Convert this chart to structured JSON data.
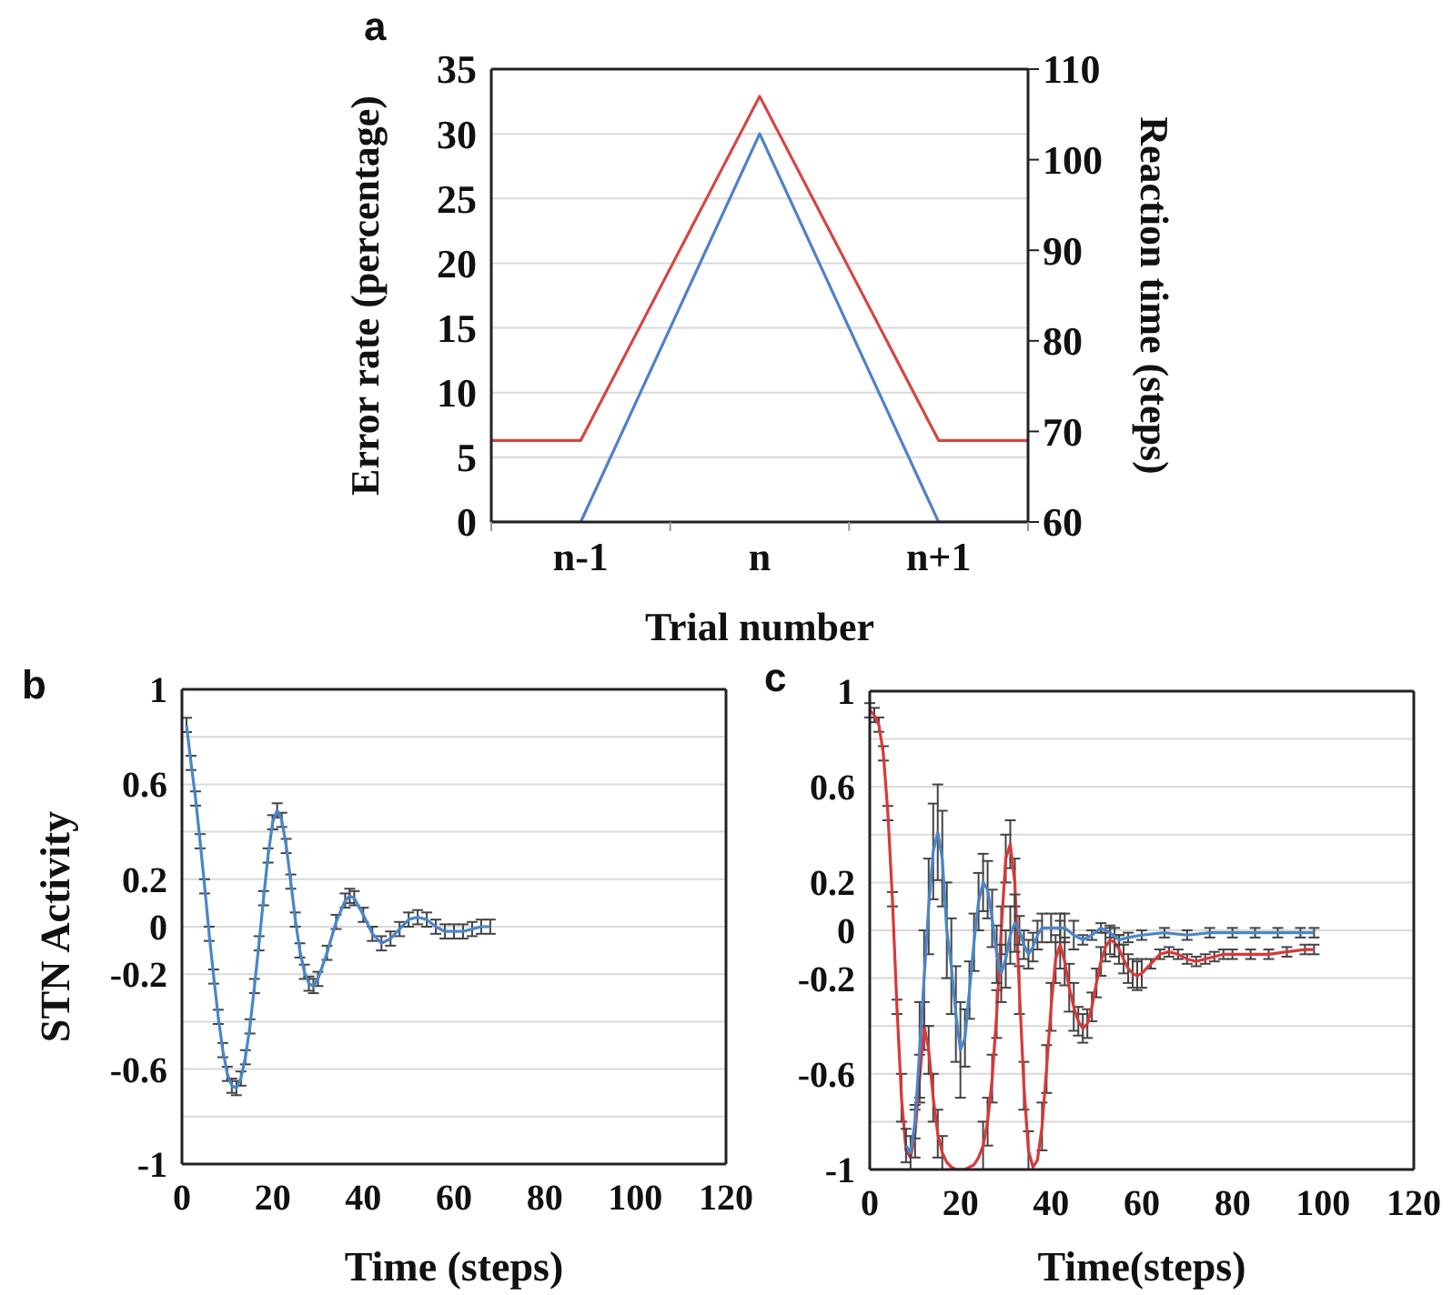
{
  "chart_data": [
    {
      "type": "line",
      "title": "a",
      "xlabel": "Trial number",
      "ylabel": "Error rate (percentage)",
      "y2label": "Reaction time (steps)",
      "categories": [
        null,
        "n-1",
        null,
        "n",
        null,
        "n+1",
        null
      ],
      "ylim": [
        0,
        35
      ],
      "yticks": [
        0,
        5,
        10,
        15,
        20,
        25,
        30,
        35
      ],
      "y2lim": [
        60,
        110
      ],
      "y2ticks": [
        60,
        70,
        80,
        90,
        100,
        110
      ],
      "grid": "y",
      "series": [
        {
          "color": "#d64541",
          "axis": "y2",
          "values": [
            69,
            69,
            88,
            107,
            88,
            69,
            69
          ]
        },
        {
          "color": "#4f81c7",
          "values": [
            0,
            0,
            15,
            30,
            15,
            0,
            0
          ]
        }
      ]
    },
    {
      "type": "line",
      "title": "b",
      "xlabel": "Time (steps)",
      "ylabel": "STN Activity",
      "xlim": [
        0,
        120
      ],
      "xticks": [
        0,
        20,
        40,
        60,
        80,
        100,
        120
      ],
      "ylim": [
        -1,
        1
      ],
      "yticks": [
        1,
        {
          "value": 0.8,
          "label": null
        },
        0.6,
        {
          "value": 0.4,
          "label": null
        },
        0.2,
        0,
        -0.2,
        {
          "value": -0.4,
          "label": null
        },
        -0.6,
        {
          "value": -0.8,
          "label": null
        },
        -1
      ],
      "grid": "y",
      "series": [
        {
          "color": "#4a86c8",
          "x": [
            1,
            2,
            3,
            4,
            5,
            6,
            7,
            8,
            9,
            10,
            11,
            12,
            13,
            14,
            15,
            16,
            17,
            18,
            19,
            20,
            21,
            22,
            23,
            24,
            25,
            26,
            27,
            28,
            29,
            30,
            32,
            34,
            36,
            37,
            38,
            40,
            42,
            44,
            46,
            48,
            50,
            52,
            54,
            56,
            58,
            60,
            62,
            64,
            66,
            68
          ],
          "values": [
            0.85,
            0.69,
            0.54,
            0.36,
            0.17,
            -0.03,
            -0.21,
            -0.38,
            -0.52,
            -0.62,
            -0.67,
            -0.68,
            -0.64,
            -0.55,
            -0.42,
            -0.25,
            -0.07,
            0.12,
            0.3,
            0.44,
            0.49,
            0.45,
            0.34,
            0.19,
            0.03,
            -0.1,
            -0.19,
            -0.24,
            -0.25,
            -0.22,
            -0.11,
            0.02,
            0.11,
            0.13,
            0.12,
            0.05,
            -0.03,
            -0.07,
            -0.05,
            -0.01,
            0.03,
            0.04,
            0.03,
            0.0,
            -0.02,
            -0.02,
            -0.02,
            -0.01,
            0.0,
            0.0
          ],
          "errors": [
            0.03,
            0.03,
            0.03,
            0.03,
            0.03,
            0.03,
            0.03,
            0.03,
            0.03,
            0.03,
            0.03,
            0.03,
            0.03,
            0.03,
            0.03,
            0.03,
            0.03,
            0.03,
            0.03,
            0.03,
            0.03,
            0.03,
            0.03,
            0.03,
            0.03,
            0.03,
            0.03,
            0.03,
            0.03,
            0.03,
            0.03,
            0.03,
            0.03,
            0.03,
            0.03,
            0.03,
            0.03,
            0.03,
            0.03,
            0.03,
            0.03,
            0.03,
            0.03,
            0.03,
            0.03,
            0.03,
            0.03,
            0.03,
            0.03,
            0.03
          ]
        }
      ]
    },
    {
      "type": "line",
      "title": "c",
      "xlabel": "Time(steps)",
      "xlim": [
        0,
        120
      ],
      "xticks": [
        0,
        20,
        40,
        60,
        80,
        100,
        120
      ],
      "ylim": [
        -1,
        1
      ],
      "yticks": [
        1,
        {
          "value": 0.8,
          "label": null
        },
        0.6,
        {
          "value": 0.4,
          "label": null
        },
        0.2,
        0,
        -0.2,
        {
          "value": -0.4,
          "label": null
        },
        -0.6,
        {
          "value": -0.8,
          "label": null
        },
        -1
      ],
      "grid": "y",
      "series": [
        {
          "color": "#d9383a",
          "x": [
            0,
            1,
            2,
            3,
            4,
            5,
            6,
            7,
            8,
            9,
            10,
            11,
            12,
            13,
            14,
            15,
            16,
            17,
            18,
            19,
            20,
            21,
            22,
            23,
            24,
            25,
            26,
            27,
            28,
            29,
            30,
            31,
            32,
            33,
            34,
            35,
            36,
            37,
            38,
            39,
            40,
            41,
            42,
            43,
            44,
            45,
            46,
            47,
            48,
            49,
            50,
            51,
            52,
            53,
            54,
            55,
            56,
            57,
            58,
            59,
            60,
            62,
            64,
            66,
            68,
            70,
            72,
            74,
            76,
            78,
            80,
            84,
            88,
            92,
            96,
            98
          ],
          "values": [
            0.92,
            0.9,
            0.86,
            0.74,
            0.49,
            0.13,
            -0.32,
            -0.7,
            -0.92,
            -0.95,
            -0.85,
            -0.62,
            -0.4,
            -0.5,
            -0.7,
            -0.85,
            -0.93,
            -0.97,
            -0.99,
            -1.0,
            -1.0,
            -1.0,
            -0.99,
            -0.98,
            -0.95,
            -0.9,
            -0.8,
            -0.62,
            -0.35,
            0.0,
            0.3,
            0.36,
            0.2,
            -0.25,
            -0.65,
            -0.92,
            -0.99,
            -0.96,
            -0.82,
            -0.58,
            -0.32,
            -0.12,
            -0.06,
            -0.13,
            -0.24,
            -0.32,
            -0.38,
            -0.41,
            -0.39,
            -0.32,
            -0.22,
            -0.13,
            -0.07,
            -0.04,
            -0.05,
            -0.08,
            -0.12,
            -0.16,
            -0.18,
            -0.19,
            -0.18,
            -0.14,
            -0.1,
            -0.09,
            -0.1,
            -0.12,
            -0.13,
            -0.12,
            -0.11,
            -0.1,
            -0.1,
            -0.1,
            -0.1,
            -0.09,
            -0.08,
            -0.08
          ],
          "errors": [
            0.03,
            0.03,
            0.03,
            0.03,
            0.03,
            0.03,
            0.03,
            0.1,
            null,
            null,
            0.1,
            0.1,
            0.1,
            0.1,
            0.1,
            0.1,
            0.07,
            null,
            null,
            null,
            null,
            null,
            null,
            null,
            null,
            0.1,
            0.1,
            0.1,
            0.1,
            0.1,
            0.1,
            0.1,
            0.1,
            0.1,
            0.1,
            0.08,
            null,
            null,
            0.1,
            0.1,
            0.1,
            0.1,
            0.1,
            0.1,
            0.1,
            0.1,
            0.06,
            0.06,
            0.06,
            0.06,
            0.06,
            0.06,
            0.06,
            0.06,
            0.06,
            0.06,
            0.06,
            0.06,
            0.06,
            0.06,
            0.06,
            0.02,
            0.02,
            0.02,
            0.02,
            0.02,
            0.02,
            0.02,
            0.02,
            0.02,
            0.02,
            0.02,
            0.02,
            0.02,
            0.02,
            0.02
          ]
        },
        {
          "color": "#4a86c8",
          "x": [
            8,
            9,
            10,
            11,
            12,
            13,
            14,
            15,
            16,
            17,
            18,
            19,
            20,
            21,
            22,
            23,
            24,
            25,
            26,
            27,
            28,
            29,
            30,
            31,
            32,
            33,
            34,
            35,
            36,
            37,
            38,
            40,
            42,
            43,
            45,
            47,
            49,
            51,
            53,
            55,
            57,
            60,
            65,
            70,
            75,
            80,
            85,
            90,
            95,
            98
          ],
          "values": [
            -0.9,
            -0.93,
            -0.8,
            -0.5,
            -0.2,
            0.1,
            0.33,
            0.41,
            0.3,
            0.0,
            -0.15,
            -0.35,
            -0.5,
            -0.45,
            -0.25,
            -0.05,
            0.12,
            0.2,
            0.17,
            0.05,
            -0.1,
            -0.18,
            -0.12,
            -0.02,
            0.03,
            0.0,
            -0.06,
            -0.1,
            -0.07,
            -0.02,
            0.01,
            0.01,
            0.01,
            0.01,
            -0.02,
            -0.04,
            -0.02,
            0.01,
            -0.01,
            -0.04,
            -0.03,
            -0.02,
            -0.01,
            -0.02,
            -0.01,
            -0.01,
            -0.01,
            -0.01,
            -0.01,
            -0.01
          ],
          "errors": [
            0.07,
            0.07,
            0.07,
            0.2,
            0.2,
            0.2,
            0.2,
            0.2,
            0.2,
            0.2,
            0.2,
            0.2,
            0.2,
            0.12,
            0.12,
            0.12,
            0.12,
            0.12,
            0.12,
            0.12,
            0.12,
            0.12,
            0.12,
            0.12,
            0.12,
            0.06,
            0.06,
            0.06,
            0.06,
            0.06,
            0.06,
            0.06,
            0.06,
            0.06,
            0.06,
            0.02,
            0.02,
            0.02,
            0.02,
            0.02,
            0.02,
            0.02,
            0.02,
            0.02,
            0.02,
            0.02,
            0.02,
            0.02,
            0.02,
            0.02
          ]
        }
      ]
    }
  ]
}
